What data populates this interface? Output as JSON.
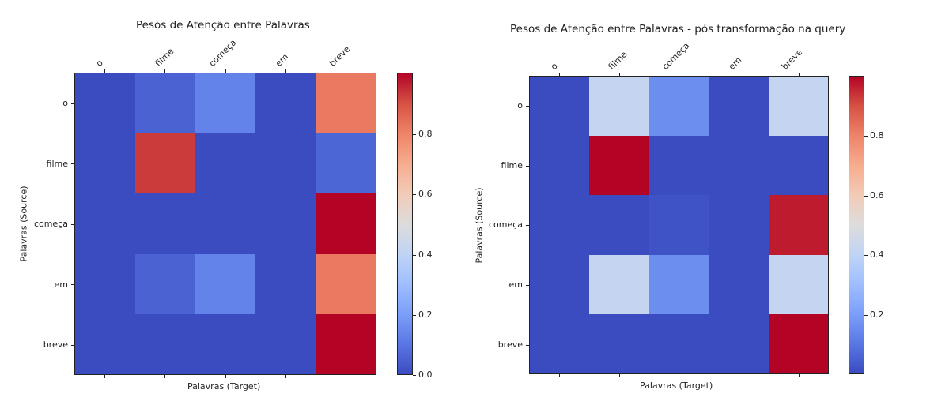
{
  "chart_data": [
    {
      "type": "heatmap",
      "title": "Pesos de Atenção entre Palavras",
      "xlabel": "Palavras (Target)",
      "ylabel": "Palavras (Source)",
      "x_categories": [
        "o",
        "filme",
        "começa",
        "em",
        "breve"
      ],
      "y_categories": [
        "o",
        "filme",
        "começa",
        "em",
        "breve"
      ],
      "values": [
        [
          0.0,
          0.05,
          0.13,
          0.0,
          0.82
        ],
        [
          0.0,
          0.93,
          0.0,
          0.0,
          0.06
        ],
        [
          0.0,
          0.0,
          0.0,
          0.0,
          1.0
        ],
        [
          0.0,
          0.05,
          0.13,
          0.0,
          0.82
        ],
        [
          0.0,
          0.0,
          0.0,
          0.0,
          1.0
        ]
      ],
      "colormap": "coolwarm",
      "colorbar": {
        "range": [
          0.0,
          1.0
        ],
        "ticks": [
          "0.0",
          "0.2",
          "0.4",
          "0.6",
          "0.8"
        ]
      },
      "x_tick_position": "top",
      "grid": false
    },
    {
      "type": "heatmap",
      "title": "Pesos de Atenção entre Palavras - pós transformação na query",
      "xlabel": "Palavras (Target)",
      "ylabel": "Palavras (Source)",
      "x_categories": [
        "o",
        "filme",
        "começa",
        "em",
        "breve"
      ],
      "y_categories": [
        "o",
        "filme",
        "começa",
        "em",
        "breve"
      ],
      "values": [
        [
          0.004,
          0.42,
          0.16,
          0.004,
          0.42
        ],
        [
          0.004,
          1.0,
          0.004,
          0.004,
          0.004
        ],
        [
          0.004,
          0.004,
          0.02,
          0.004,
          0.97
        ],
        [
          0.004,
          0.42,
          0.16,
          0.004,
          0.42
        ],
        [
          0.004,
          0.004,
          0.004,
          0.004,
          1.0
        ]
      ],
      "colormap": "coolwarm",
      "colorbar": {
        "range": [
          0.004,
          1.0
        ],
        "ticks": [
          "0.2",
          "0.4",
          "0.6",
          "0.8"
        ]
      },
      "x_tick_position": "top",
      "grid": false
    }
  ],
  "panels": [
    {
      "title": "Pesos de Atenção entre Palavras",
      "xlabel": "Palavras (Target)",
      "ylabel": "Palavras (Source)",
      "x_labels": [
        "o",
        "filme",
        "começa",
        "em",
        "breve"
      ],
      "y_labels": [
        "o",
        "filme",
        "começa",
        "em",
        "breve"
      ],
      "colorbar_ticks": [
        "0.0",
        "0.2",
        "0.4",
        "0.6",
        "0.8"
      ]
    },
    {
      "title": "Pesos de Atenção entre Palavras - pós transformação na query",
      "xlabel": "Palavras (Target)",
      "ylabel": "Palavras (Source)",
      "x_labels": [
        "o",
        "filme",
        "começa",
        "em",
        "breve"
      ],
      "y_labels": [
        "o",
        "filme",
        "começa",
        "em",
        "breve"
      ],
      "colorbar_ticks": [
        "0.2",
        "0.4",
        "0.6",
        "0.8"
      ]
    }
  ],
  "colors": {
    "cmap_low": "#3b4cc0",
    "cmap_mid": "#dddcdc",
    "cmap_high": "#b40426"
  }
}
